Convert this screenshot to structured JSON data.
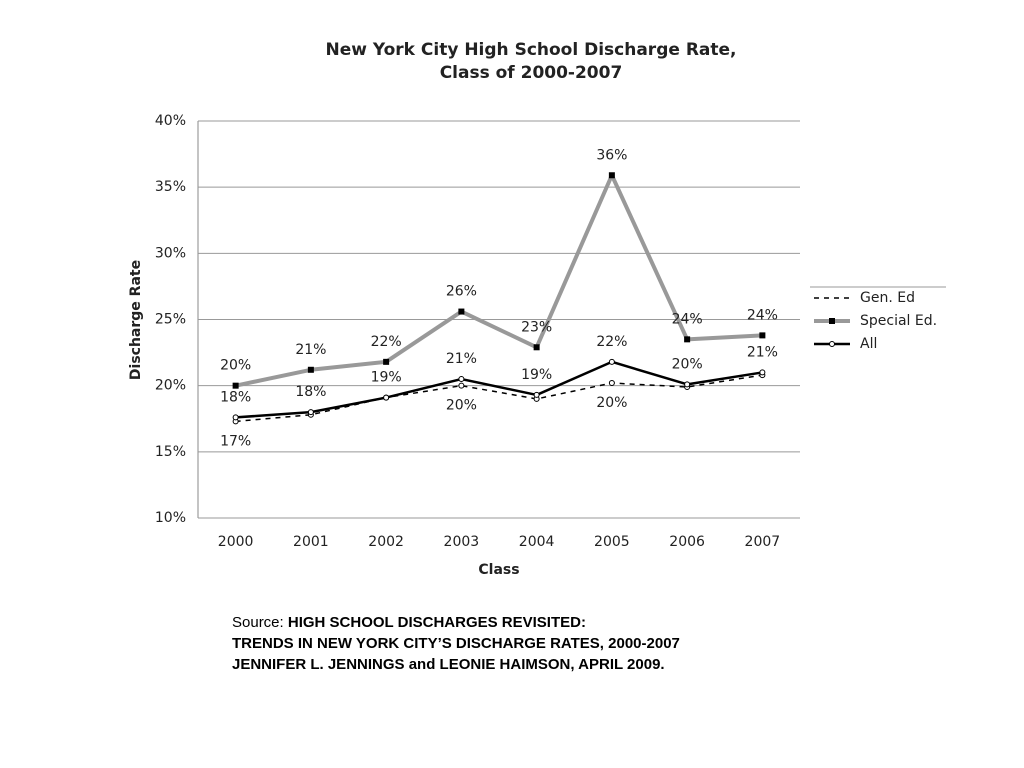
{
  "chart_data": {
    "type": "line",
    "title": [
      "New York City High School Discharge Rate,",
      "Class of 2000-2007"
    ],
    "x_label": "Class",
    "y_label": "Discharge Rate",
    "categories": [
      "2000",
      "2001",
      "2002",
      "2003",
      "2004",
      "2005",
      "2006",
      "2007"
    ],
    "series": [
      {
        "name": "Gen. Ed",
        "color": "#000000",
        "style": "dashed",
        "values": [
          17.3,
          17.8,
          19.1,
          20.0,
          19.0,
          20.2,
          19.9,
          20.8
        ],
        "value_labels": [
          "17%",
          null,
          null,
          "20%",
          null,
          "20%",
          null,
          null
        ]
      },
      {
        "name": "Special Ed.",
        "color": "#999999",
        "style": "thick",
        "values": [
          20.0,
          21.2,
          21.8,
          25.6,
          22.9,
          35.9,
          23.5,
          23.8
        ],
        "value_labels": [
          "20%",
          "21%",
          "22%",
          "26%",
          "23%",
          "36%",
          "24%",
          "24%"
        ]
      },
      {
        "name": "All",
        "color": "#000000",
        "style": "solid",
        "values": [
          17.6,
          18.0,
          19.1,
          20.5,
          19.3,
          21.8,
          20.1,
          21.0
        ],
        "value_labels": [
          "18%",
          "18%",
          "19%",
          "21%",
          "19%",
          "22%",
          "20%",
          "21%"
        ]
      }
    ],
    "ylim": [
      10,
      40
    ],
    "yticks": [
      {
        "value": 10,
        "label": "10%"
      },
      {
        "value": 15,
        "label": "15%"
      },
      {
        "value": 20,
        "label": "20%"
      },
      {
        "value": 25,
        "label": "25%"
      },
      {
        "value": 30,
        "label": "30%"
      },
      {
        "value": 35,
        "label": "35%"
      },
      {
        "value": 40,
        "label": "40%"
      }
    ],
    "grid": true,
    "legend": "right"
  },
  "source": {
    "prefix": "Source:",
    "lines": [
      "HIGH SCHOOL DISCHARGES REVISITED:",
      "TRENDS IN NEW YORK CITY’S DISCHARGE RATES, 2000-2007",
      "JENNIFER L. JENNINGS and LEONIE HAIMSON, APRIL 2009."
    ]
  }
}
